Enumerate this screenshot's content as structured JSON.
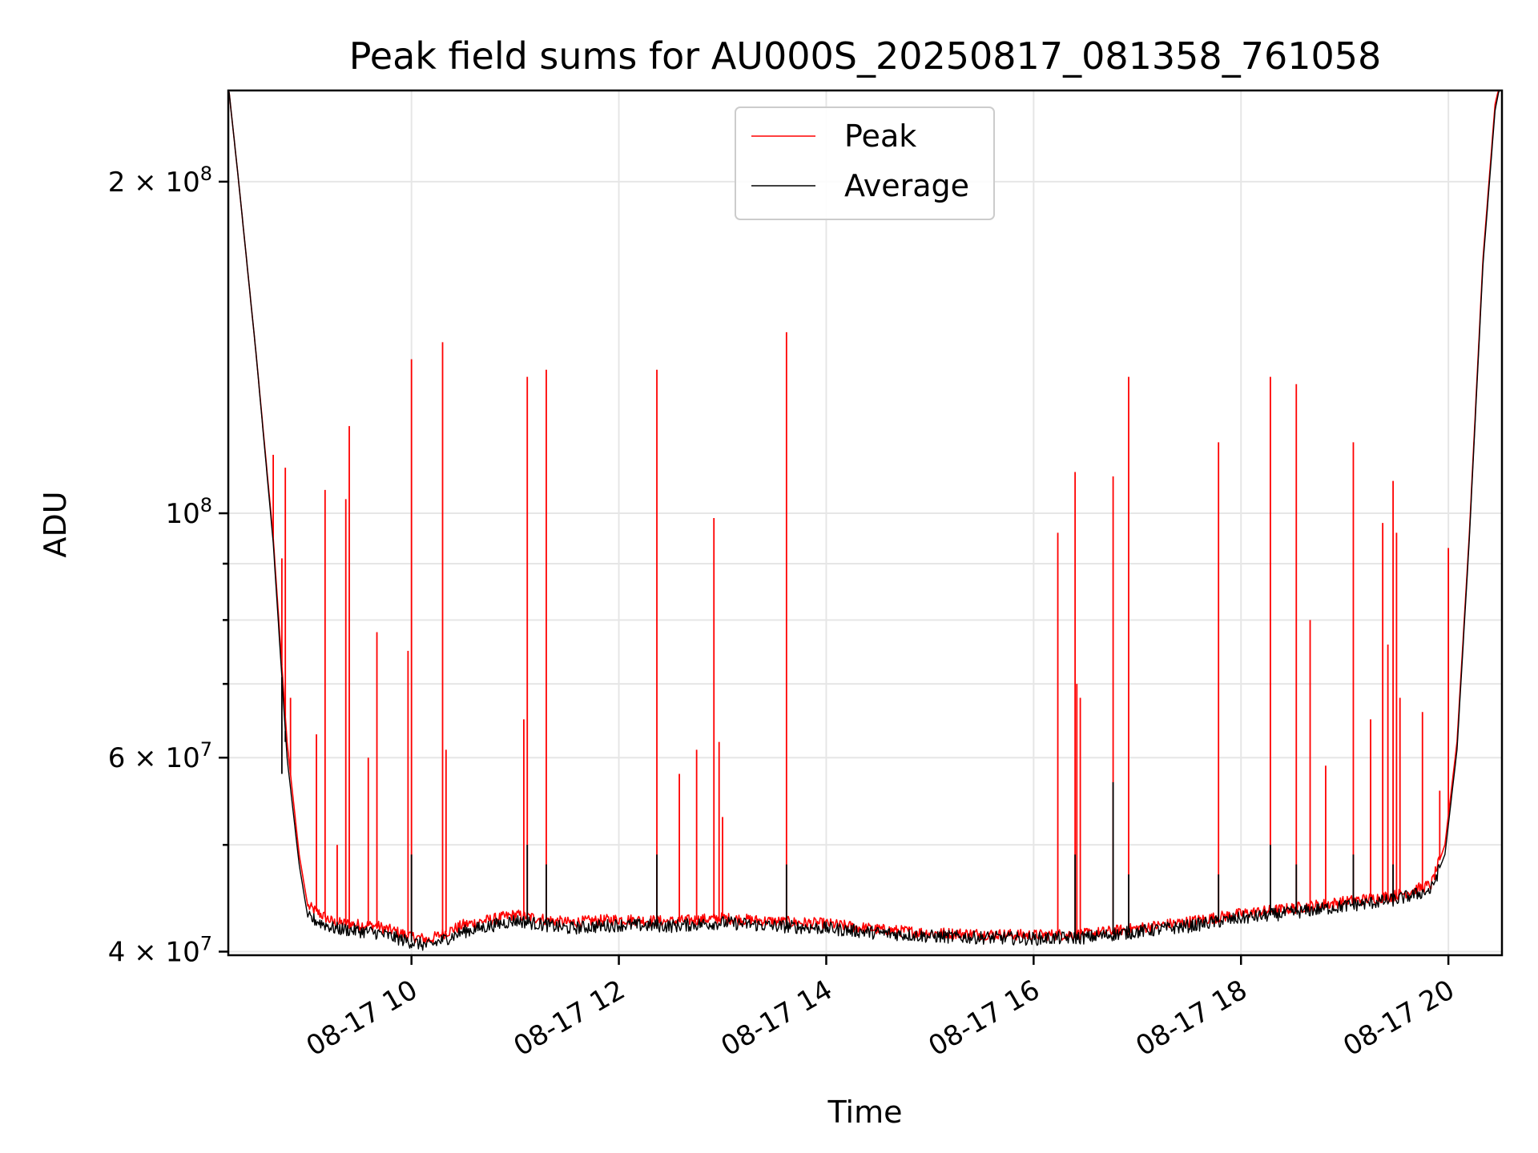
{
  "chart_data": {
    "type": "line",
    "title": "Peak field sums for AU000S_20250817_081358_761058",
    "xlabel": "Time",
    "ylabel": "ADU",
    "x_scale": "time",
    "y_scale": "log",
    "xlim": [
      "08-17 08:14",
      "08-17 20:31"
    ],
    "ylim": [
      39700000,
      242000000
    ],
    "x_ticks": [
      {
        "value": "08-17 10:00",
        "label": "08-17 10"
      },
      {
        "value": "08-17 12:00",
        "label": "08-17 12"
      },
      {
        "value": "08-17 14:00",
        "label": "08-17 14"
      },
      {
        "value": "08-17 16:00",
        "label": "08-17 16"
      },
      {
        "value": "08-17 18:00",
        "label": "08-17 18"
      },
      {
        "value": "08-17 20:00",
        "label": "08-17 20"
      }
    ],
    "y_major_ticks": [
      {
        "value": 40000000,
        "mantissa": "4",
        "exponent": "7"
      },
      {
        "value": 60000000,
        "mantissa": "6",
        "exponent": "7"
      },
      {
        "value": 100000000,
        "mantissa": "",
        "exponent": "8"
      },
      {
        "value": 200000000,
        "mantissa": "2",
        "exponent": "8"
      }
    ],
    "y_minor_ticks": [
      50000000,
      70000000,
      80000000,
      90000000
    ],
    "grid": true,
    "legend_position": "top-center",
    "series": [
      {
        "name": "Peak",
        "color": "#ff0000",
        "baseline": [
          [
            "08-17 08:14",
            245000000
          ],
          [
            "08-17 08:20",
            200000000
          ],
          [
            "08-17 08:30",
            140000000
          ],
          [
            "08-17 08:40",
            95000000
          ],
          [
            "08-17 08:48",
            62000000
          ],
          [
            "08-17 08:55",
            49000000
          ],
          [
            "08-17 09:00",
            44000000
          ],
          [
            "08-17 09:15",
            42500000
          ],
          [
            "08-17 09:40",
            42200000
          ],
          [
            "08-17 10:00",
            41300000
          ],
          [
            "08-17 10:10",
            41000000
          ],
          [
            "08-17 10:30",
            42300000
          ],
          [
            "08-17 11:00",
            43200000
          ],
          [
            "08-17 11:30",
            42500000
          ],
          [
            "08-17 12:00",
            42800000
          ],
          [
            "08-17 12:30",
            42600000
          ],
          [
            "08-17 13:00",
            42900000
          ],
          [
            "08-17 13:30",
            42600000
          ],
          [
            "08-17 14:00",
            42400000
          ],
          [
            "08-17 14:30",
            41900000
          ],
          [
            "08-17 15:00",
            41600000
          ],
          [
            "08-17 15:30",
            41500000
          ],
          [
            "08-17 16:00",
            41400000
          ],
          [
            "08-17 16:30",
            41500000
          ],
          [
            "08-17 17:00",
            42000000
          ],
          [
            "08-17 17:30",
            42600000
          ],
          [
            "08-17 18:00",
            43300000
          ],
          [
            "08-17 18:30",
            43800000
          ],
          [
            "08-17 19:00",
            44400000
          ],
          [
            "08-17 19:30",
            45000000
          ],
          [
            "08-17 19:50",
            46000000
          ],
          [
            "08-17 19:58",
            50000000
          ],
          [
            "08-17 20:05",
            62000000
          ],
          [
            "08-17 20:12",
            95000000
          ],
          [
            "08-17 20:20",
            170000000
          ],
          [
            "08-17 20:27",
            235000000
          ],
          [
            "08-17 20:31",
            250000000
          ]
        ],
        "spikes": [
          [
            "08-17 08:40",
            113000000
          ],
          [
            "08-17 08:45",
            91000000
          ],
          [
            "08-17 08:47",
            110000000
          ],
          [
            "08-17 08:50",
            68000000
          ],
          [
            "08-17 09:05",
            63000000
          ],
          [
            "08-17 09:10",
            105000000
          ],
          [
            "08-17 09:17",
            50000000
          ],
          [
            "08-17 09:22",
            103000000
          ],
          [
            "08-17 09:24",
            120000000
          ],
          [
            "08-17 09:35",
            60000000
          ],
          [
            "08-17 09:40",
            78000000
          ],
          [
            "08-17 09:58",
            75000000
          ],
          [
            "08-17 10:00",
            138000000
          ],
          [
            "08-17 10:18",
            143000000
          ],
          [
            "08-17 10:20",
            61000000
          ],
          [
            "08-17 11:05",
            65000000
          ],
          [
            "08-17 11:07",
            133000000
          ],
          [
            "08-17 11:18",
            135000000
          ],
          [
            "08-17 12:22",
            135000000
          ],
          [
            "08-17 12:35",
            58000000
          ],
          [
            "08-17 12:45",
            61000000
          ],
          [
            "08-17 12:55",
            99000000
          ],
          [
            "08-17 12:58",
            62000000
          ],
          [
            "08-17 13:00",
            53000000
          ],
          [
            "08-17 13:37",
            146000000
          ],
          [
            "08-17 16:14",
            96000000
          ],
          [
            "08-17 16:24",
            109000000
          ],
          [
            "08-17 16:25",
            70000000
          ],
          [
            "08-17 16:27",
            68000000
          ],
          [
            "08-17 16:46",
            108000000
          ],
          [
            "08-17 16:55",
            133000000
          ],
          [
            "08-17 17:47",
            116000000
          ],
          [
            "08-17 18:17",
            133000000
          ],
          [
            "08-17 18:32",
            131000000
          ],
          [
            "08-17 18:40",
            80000000
          ],
          [
            "08-17 18:49",
            59000000
          ],
          [
            "08-17 19:05",
            116000000
          ],
          [
            "08-17 19:15",
            65000000
          ],
          [
            "08-17 19:22",
            98000000
          ],
          [
            "08-17 19:25",
            76000000
          ],
          [
            "08-17 19:28",
            107000000
          ],
          [
            "08-17 19:30",
            96000000
          ],
          [
            "08-17 19:32",
            68000000
          ],
          [
            "08-17 19:45",
            66000000
          ],
          [
            "08-17 19:55",
            56000000
          ],
          [
            "08-17 20:00",
            93000000
          ]
        ]
      },
      {
        "name": "Average",
        "color": "#000000",
        "baseline": [
          [
            "08-17 08:14",
            245000000
          ],
          [
            "08-17 08:20",
            200000000
          ],
          [
            "08-17 08:30",
            140000000
          ],
          [
            "08-17 08:40",
            94000000
          ],
          [
            "08-17 08:48",
            60000000
          ],
          [
            "08-17 08:55",
            48000000
          ],
          [
            "08-17 09:00",
            43000000
          ],
          [
            "08-17 09:15",
            42000000
          ],
          [
            "08-17 09:40",
            41600000
          ],
          [
            "08-17 10:00",
            40800000
          ],
          [
            "08-17 10:10",
            40500000
          ],
          [
            "08-17 10:30",
            41700000
          ],
          [
            "08-17 11:00",
            42700000
          ],
          [
            "08-17 11:30",
            42000000
          ],
          [
            "08-17 12:00",
            42300000
          ],
          [
            "08-17 12:30",
            42200000
          ],
          [
            "08-17 13:00",
            42500000
          ],
          [
            "08-17 13:30",
            42200000
          ],
          [
            "08-17 14:00",
            42000000
          ],
          [
            "08-17 14:30",
            41600000
          ],
          [
            "08-17 15:00",
            41300000
          ],
          [
            "08-17 15:30",
            41200000
          ],
          [
            "08-17 16:00",
            41100000
          ],
          [
            "08-17 16:30",
            41200000
          ],
          [
            "08-17 17:00",
            41700000
          ],
          [
            "08-17 17:30",
            42200000
          ],
          [
            "08-17 18:00",
            42900000
          ],
          [
            "08-17 18:30",
            43400000
          ],
          [
            "08-17 19:00",
            44000000
          ],
          [
            "08-17 19:30",
            44600000
          ],
          [
            "08-17 19:50",
            45500000
          ],
          [
            "08-17 19:58",
            49000000
          ],
          [
            "08-17 20:05",
            61000000
          ],
          [
            "08-17 20:12",
            94000000
          ],
          [
            "08-17 20:20",
            168000000
          ],
          [
            "08-17 20:27",
            232000000
          ],
          [
            "08-17 20:31",
            250000000
          ]
        ],
        "spikes": [
          [
            "08-17 08:45",
            58000000
          ],
          [
            "08-17 08:47",
            62000000
          ],
          [
            "08-17 10:00",
            49000000
          ],
          [
            "08-17 11:07",
            50000000
          ],
          [
            "08-17 11:18",
            48000000
          ],
          [
            "08-17 12:22",
            49000000
          ],
          [
            "08-17 13:37",
            48000000
          ],
          [
            "08-17 16:24",
            49000000
          ],
          [
            "08-17 16:46",
            57000000
          ],
          [
            "08-17 16:55",
            47000000
          ],
          [
            "08-17 17:47",
            47000000
          ],
          [
            "08-17 18:17",
            50000000
          ],
          [
            "08-17 18:32",
            48000000
          ],
          [
            "08-17 19:05",
            49000000
          ],
          [
            "08-17 19:28",
            48000000
          ]
        ]
      }
    ]
  }
}
